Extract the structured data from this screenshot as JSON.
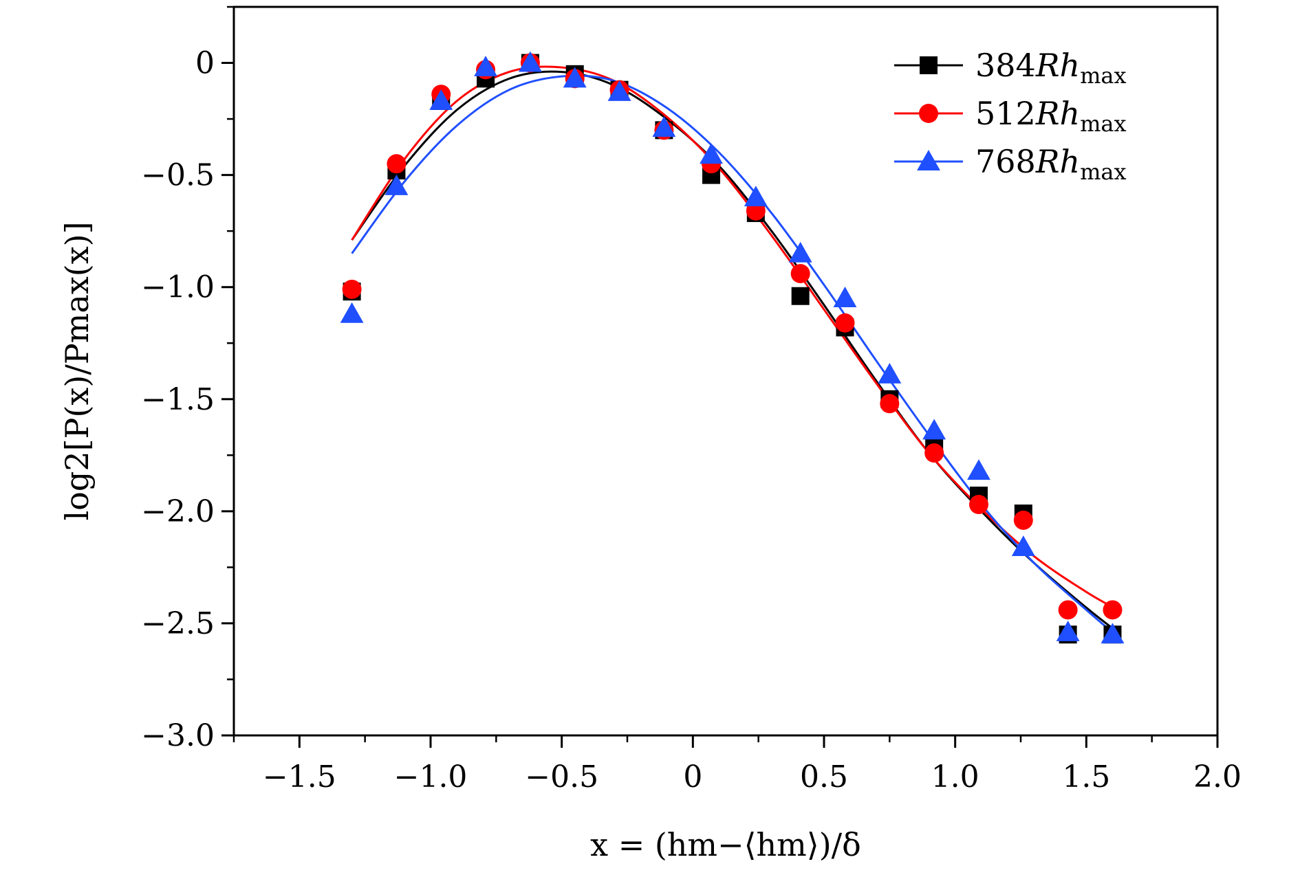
{
  "chart_data": {
    "type": "scatter",
    "xlabel": "x = (hm−⟨hm⟩)/δ",
    "ylabel": "log2[P(x)/Pmax(x)]",
    "xlim": [
      -1.75,
      2.0
    ],
    "ylim": [
      -3.0,
      0.25
    ],
    "x_ticks": [
      -1.5,
      -1.0,
      -0.5,
      0,
      0.5,
      1.0,
      1.5,
      2.0
    ],
    "x_tick_labels": [
      "−1.5",
      "−1.0",
      "−0.5",
      "0",
      "0.5",
      "1.0",
      "1.5",
      "2.0"
    ],
    "y_ticks": [
      0,
      -0.5,
      -1.0,
      -1.5,
      -2.0,
      -2.5,
      -3.0
    ],
    "y_tick_labels": [
      "0",
      "−0.5",
      "−1.0",
      "−1.5",
      "−2.0",
      "−2.5",
      "−3.0"
    ],
    "legend_position": "top-right",
    "grid": false,
    "series": [
      {
        "name": "384Rhmax",
        "color": "#000000",
        "marker": "square",
        "x": [
          -1.3,
          -1.13,
          -0.96,
          -0.79,
          -0.62,
          -0.45,
          -0.28,
          -0.11,
          0.07,
          0.24,
          0.41,
          0.58,
          0.75,
          0.92,
          1.09,
          1.26,
          1.43,
          1.6
        ],
        "y": [
          -1.02,
          -0.48,
          -0.17,
          -0.07,
          0.0,
          -0.05,
          -0.12,
          -0.3,
          -0.5,
          -0.67,
          -1.04,
          -1.18,
          -1.5,
          -1.7,
          -1.93,
          -2.01,
          -2.55,
          -2.55
        ],
        "fit_x": [
          -1.3,
          -1.1,
          -0.9,
          -0.7,
          -0.5,
          -0.3,
          -0.1,
          0.1,
          0.3,
          0.5,
          0.7,
          0.9,
          1.1,
          1.3,
          1.5,
          1.62
        ],
        "fit_y": [
          -0.79,
          -0.46,
          -0.21,
          -0.07,
          -0.04,
          -0.1,
          -0.25,
          -0.46,
          -0.75,
          -1.08,
          -1.42,
          -1.74,
          -2.0,
          -2.23,
          -2.43,
          -2.54
        ]
      },
      {
        "name": "512Rhmax",
        "color": "#ff0000",
        "marker": "circle",
        "x": [
          -1.3,
          -1.13,
          -0.96,
          -0.79,
          -0.62,
          -0.45,
          -0.28,
          -0.11,
          0.07,
          0.24,
          0.41,
          0.58,
          0.75,
          0.92,
          1.09,
          1.26,
          1.43,
          1.6
        ],
        "y": [
          -1.01,
          -0.45,
          -0.14,
          -0.03,
          0.0,
          -0.07,
          -0.12,
          -0.3,
          -0.45,
          -0.66,
          -0.94,
          -1.16,
          -1.52,
          -1.74,
          -1.97,
          -2.04,
          -2.44,
          -2.44
        ],
        "fit_x": [
          -1.3,
          -1.1,
          -0.9,
          -0.7,
          -0.5,
          -0.3,
          -0.1,
          0.1,
          0.3,
          0.5,
          0.7,
          0.9,
          1.1,
          1.3,
          1.5,
          1.62
        ],
        "fit_y": [
          -0.79,
          -0.43,
          -0.17,
          -0.04,
          -0.02,
          -0.08,
          -0.24,
          -0.47,
          -0.77,
          -1.1,
          -1.43,
          -1.74,
          -1.99,
          -2.2,
          -2.36,
          -2.44
        ]
      },
      {
        "name": "768Rhmax",
        "color": "#1f4fff",
        "marker": "triangle",
        "x": [
          -1.3,
          -1.13,
          -0.96,
          -0.79,
          -0.62,
          -0.45,
          -0.28,
          -0.11,
          0.07,
          0.24,
          0.41,
          0.58,
          0.75,
          0.92,
          1.09,
          1.26,
          1.43,
          1.6
        ],
        "y": [
          -1.12,
          -0.55,
          -0.17,
          -0.02,
          0.0,
          -0.07,
          -0.13,
          -0.29,
          -0.41,
          -0.6,
          -0.85,
          -1.05,
          -1.39,
          -1.64,
          -1.82,
          -2.16,
          -2.54,
          -2.55
        ],
        "fit_x": [
          -1.3,
          -1.1,
          -0.9,
          -0.7,
          -0.5,
          -0.3,
          -0.1,
          0.1,
          0.3,
          0.5,
          0.7,
          0.9,
          1.1,
          1.3,
          1.5,
          1.62
        ],
        "fit_y": [
          -0.85,
          -0.53,
          -0.28,
          -0.12,
          -0.06,
          -0.08,
          -0.2,
          -0.4,
          -0.67,
          -0.99,
          -1.33,
          -1.66,
          -1.97,
          -2.23,
          -2.44,
          -2.56
        ]
      }
    ]
  }
}
